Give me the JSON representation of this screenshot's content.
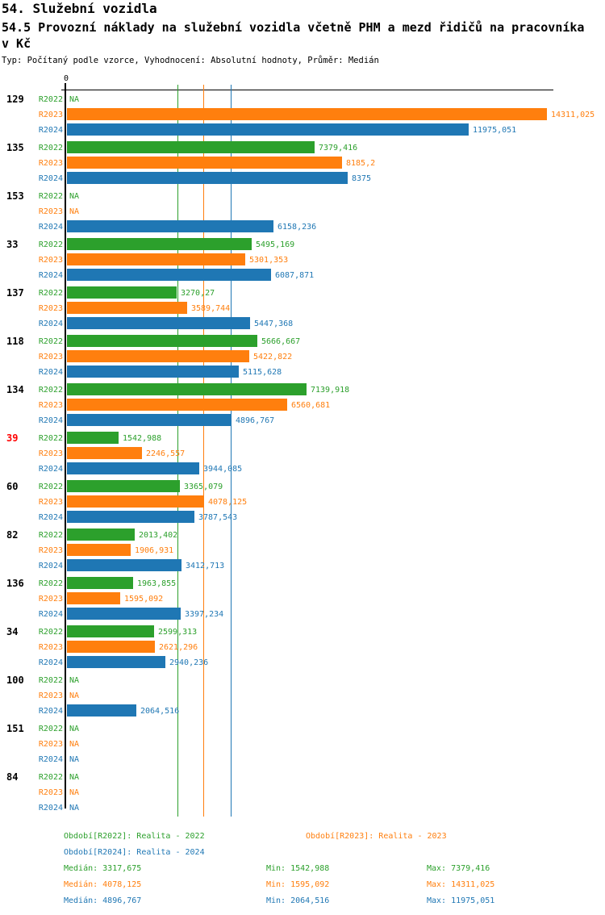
{
  "header": {
    "title": "54. Služební vozidla",
    "subtitle": "54.5 Provozní náklady na služební vozidla včetně PHM a mezd řidičů na pracovníka v Kč",
    "meta": "Typ: Počítaný podle vzorce, Vyhodnocení: Absolutní hodnoty, Průměr: Medián"
  },
  "colors": {
    "green": "#2ca02c",
    "orange": "#ff7f0e",
    "blue": "#1f77b4",
    "highlight_red": "#ff0000",
    "axis_black": "#000000",
    "background": "#ffffff"
  },
  "chart_data": {
    "type": "bar",
    "orientation": "horizontal",
    "title": "54.5 Provozní náklady na služební vozidla včetně PHM a mezd řidičů na pracovníka v Kč",
    "axis": {
      "zero_label": "0",
      "xlim": [
        0,
        14500
      ],
      "grid": false
    },
    "series_names": [
      "R2022",
      "R2023",
      "R2024"
    ],
    "series_colors": [
      "#2ca02c",
      "#ff7f0e",
      "#1f77b4"
    ],
    "categories": [
      "129",
      "135",
      "153",
      "33",
      "137",
      "118",
      "134",
      "39",
      "60",
      "82",
      "136",
      "34",
      "100",
      "151",
      "84"
    ],
    "highlighted_category": "39",
    "groups": [
      {
        "id": "129",
        "highlight": false,
        "values": [
          null,
          14311.025,
          11975.051
        ],
        "labels": [
          "NA",
          "14311,025",
          "11975,051"
        ]
      },
      {
        "id": "135",
        "highlight": false,
        "values": [
          7379.416,
          8185.2,
          8375
        ],
        "labels": [
          "7379,416",
          "8185,2",
          "8375"
        ]
      },
      {
        "id": "153",
        "highlight": false,
        "values": [
          null,
          null,
          6158.236
        ],
        "labels": [
          "NA",
          "NA",
          "6158,236"
        ]
      },
      {
        "id": "33",
        "highlight": false,
        "values": [
          5495.169,
          5301.353,
          6087.871
        ],
        "labels": [
          "5495,169",
          "5301,353",
          "6087,871"
        ]
      },
      {
        "id": "137",
        "highlight": false,
        "values": [
          3270.27,
          3589.744,
          5447.368
        ],
        "labels": [
          "3270,27",
          "3589,744",
          "5447,368"
        ]
      },
      {
        "id": "118",
        "highlight": false,
        "values": [
          5666.667,
          5422.822,
          5115.628
        ],
        "labels": [
          "5666,667",
          "5422,822",
          "5115,628"
        ]
      },
      {
        "id": "134",
        "highlight": false,
        "values": [
          7139.918,
          6560.681,
          4896.767
        ],
        "labels": [
          "7139,918",
          "6560,681",
          "4896,767"
        ]
      },
      {
        "id": "39",
        "highlight": true,
        "values": [
          1542.988,
          2246.557,
          3944.085
        ],
        "labels": [
          "1542,988",
          "2246,557",
          "3944,085"
        ]
      },
      {
        "id": "60",
        "highlight": false,
        "values": [
          3365.079,
          4078.125,
          3787.543
        ],
        "labels": [
          "3365,079",
          "4078,125",
          "3787,543"
        ]
      },
      {
        "id": "82",
        "highlight": false,
        "values": [
          2013.402,
          1906.931,
          3412.713
        ],
        "labels": [
          "2013,402",
          "1906,931",
          "3412,713"
        ]
      },
      {
        "id": "136",
        "highlight": false,
        "values": [
          1963.855,
          1595.092,
          3397.234
        ],
        "labels": [
          "1963,855",
          "1595,092",
          "3397,234"
        ]
      },
      {
        "id": "34",
        "highlight": false,
        "values": [
          2599.313,
          2621.296,
          2940.236
        ],
        "labels": [
          "2599,313",
          "2621,296",
          "2940,236"
        ]
      },
      {
        "id": "100",
        "highlight": false,
        "values": [
          null,
          null,
          2064.516
        ],
        "labels": [
          "NA",
          "NA",
          "2064,516"
        ]
      },
      {
        "id": "151",
        "highlight": false,
        "values": [
          null,
          null,
          null
        ],
        "labels": [
          "NA",
          "NA",
          "NA"
        ]
      },
      {
        "id": "84",
        "highlight": false,
        "values": [
          null,
          null,
          null
        ],
        "labels": [
          "NA",
          "NA",
          "NA"
        ]
      }
    ],
    "median_lines": [
      {
        "series": "R2022",
        "value": 3317.675,
        "color": "#2ca02c"
      },
      {
        "series": "R2023",
        "value": 4078.125,
        "color": "#ff7f0e"
      },
      {
        "series": "R2024",
        "value": 4896.767,
        "color": "#1f77b4"
      }
    ]
  },
  "legend": {
    "periods": [
      {
        "series": "R2022",
        "text": "Období[R2022]: Realita - 2022",
        "color": "#2ca02c"
      },
      {
        "series": "R2023",
        "text": "Období[R2023]: Realita - 2023",
        "color": "#ff7f0e"
      },
      {
        "series": "R2024",
        "text": "Období[R2024]: Realita - 2024",
        "color": "#1f77b4"
      }
    ],
    "stats": [
      {
        "series": "R2022",
        "color": "#2ca02c",
        "median": "Medián: 3317,675",
        "min": "Min: 1542,988",
        "max": "Max: 7379,416"
      },
      {
        "series": "R2023",
        "color": "#ff7f0e",
        "median": "Medián: 4078,125",
        "min": "Min: 1595,092",
        "max": "Max: 14311,025"
      },
      {
        "series": "R2024",
        "color": "#1f77b4",
        "median": "Medián: 4896,767",
        "min": "Min: 2064,516",
        "max": "Max: 11975,051"
      }
    ]
  }
}
